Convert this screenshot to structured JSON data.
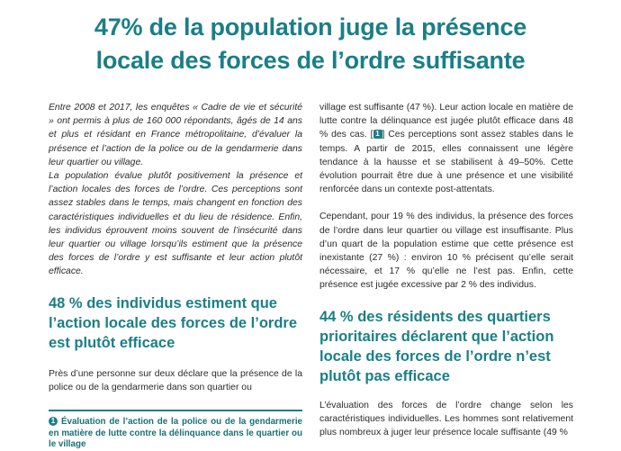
{
  "title_line1": "47% de la population juge la présence",
  "title_line2": "locale des forces de l’ordre suffisante",
  "left": {
    "intro_p1": "Entre 2008 et 2017, les enquêtes « Cadre de vie et sécurité » ont permis à plus de 160 000 répondants, âgés de 14 ans et plus et résidant en France métropolitaine, d’évaluer la présence et l’action de la police ou de la gendarmerie dans leur quartier ou village.",
    "intro_p2": "La population évalue plutôt positivement la présence et l’action locales des forces de l’ordre. Ces perceptions sont assez stables dans le temps, mais changent en fonction des caractéristiques individuelles et du lieu de résidence. Enfin, les individus éprouvent moins souvent de l’insécurité dans leur quartier ou village lorsqu’ils estiment que la présence des forces de l’ordre y est suffisante et leur action plutôt efficace.",
    "heading": "48 % des individus estiment que l’action locale des forces de l’ordre est plutôt efficace",
    "body": "Près d’une personne sur deux déclare que la présence de la police ou de la gendarmerie dans son quartier ou",
    "figure_number": "1",
    "figure_title": "Évaluation de l’action de la police ou de la gendarmerie en matière de lutte contre la délinquance dans le quartier ou le village"
  },
  "right": {
    "p1_before": "village est suffisante (47 %). Leur action locale en matière de lutte contre la délinquance est jugée plutôt efficace dans 48 % des cas. [",
    "p1_ref": "1",
    "p1_after": "] Ces perceptions sont assez stables dans le temps. A partir de 2015, elles connaissent une légère tendance à la hausse et se stabilisent à 49–50%. Cette évolution pourrait être due à une présence et une visibilité renforcée dans un contexte post-attentats.",
    "p2": "Cependant, pour 19 % des individus, la présence des forces de l’ordre dans leur quartier ou village est insuffisante. Plus d’un quart de la population estime que cette présence est inexistante (27 %) : environ 10 % précisent qu’elle serait nécessaire, et 17 % qu’elle ne l’est pas. Enfin, cette présence est jugée excessive par 2 % des individus.",
    "heading": "44 % des résidents des quartiers prioritaires déclarent que l’action locale des forces de l’ordre n’est plutôt pas efficace",
    "p3": "L’évaluation des forces de l’ordre change selon les caractéristiques individuelles. Les hommes sont relativement plus nombreux à juger leur présence locale suffisante (49 %"
  },
  "colors": {
    "accent": "#1a7f86"
  }
}
